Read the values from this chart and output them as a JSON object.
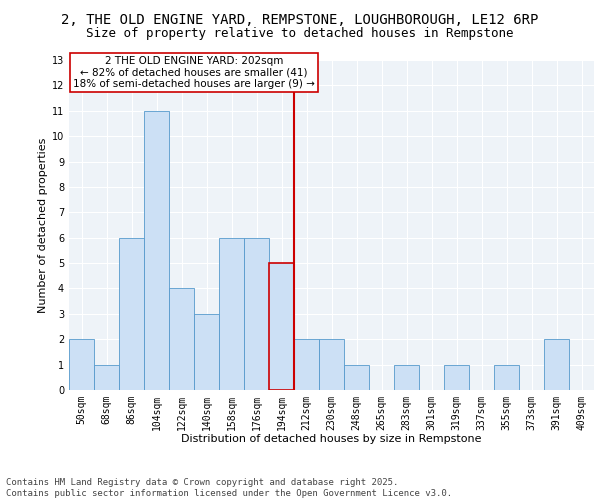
{
  "title1": "2, THE OLD ENGINE YARD, REMPSTONE, LOUGHBOROUGH, LE12 6RP",
  "title2": "Size of property relative to detached houses in Rempstone",
  "xlabel": "Distribution of detached houses by size in Rempstone",
  "ylabel": "Number of detached properties",
  "categories": [
    "50sqm",
    "68sqm",
    "86sqm",
    "104sqm",
    "122sqm",
    "140sqm",
    "158sqm",
    "176sqm",
    "194sqm",
    "212sqm",
    "230sqm",
    "248sqm",
    "265sqm",
    "283sqm",
    "301sqm",
    "319sqm",
    "337sqm",
    "355sqm",
    "373sqm",
    "391sqm",
    "409sqm"
  ],
  "values": [
    2,
    1,
    6,
    11,
    4,
    3,
    6,
    6,
    5,
    2,
    2,
    1,
    0,
    1,
    0,
    1,
    0,
    1,
    0,
    2,
    0
  ],
  "bar_color": "#cce0f5",
  "bar_edge_color": "#5599cc",
  "highlight_bar_index": 8,
  "highlight_bar_edge_color": "#cc0000",
  "vline_color": "#cc0000",
  "annotation_text": "2 THE OLD ENGINE YARD: 202sqm\n← 82% of detached houses are smaller (41)\n18% of semi-detached houses are larger (9) →",
  "annotation_box_color": "white",
  "annotation_box_edge_color": "#cc0000",
  "ylim": [
    0,
    13
  ],
  "yticks": [
    0,
    1,
    2,
    3,
    4,
    5,
    6,
    7,
    8,
    9,
    10,
    11,
    12,
    13
  ],
  "bg_color": "#eef3f8",
  "grid_color": "white",
  "footer_text": "Contains HM Land Registry data © Crown copyright and database right 2025.\nContains public sector information licensed under the Open Government Licence v3.0.",
  "title_fontsize": 10,
  "subtitle_fontsize": 9,
  "axis_label_fontsize": 8,
  "tick_fontsize": 7,
  "annotation_fontsize": 7.5,
  "footer_fontsize": 6.5
}
